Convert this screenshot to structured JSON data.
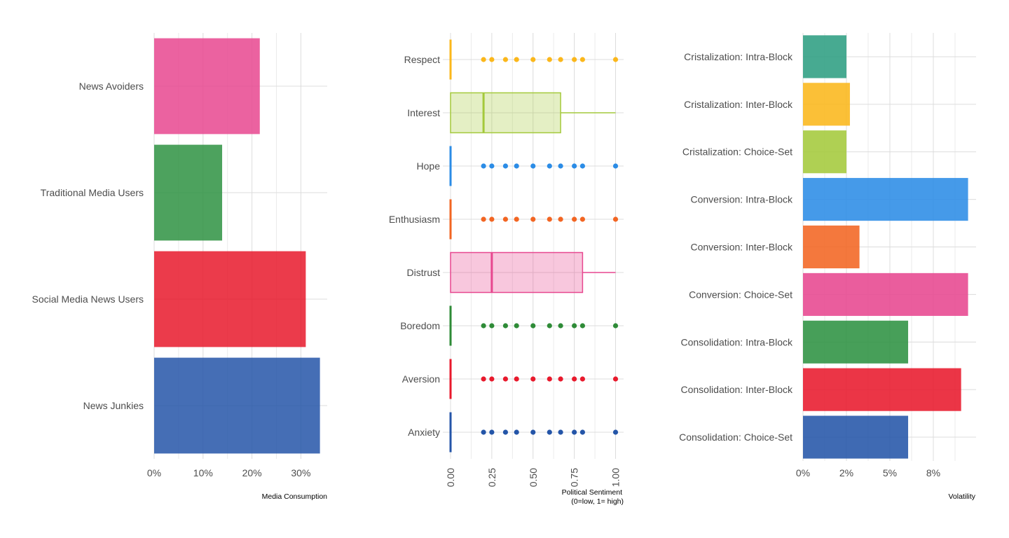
{
  "chart_data": [
    {
      "type": "bar",
      "orientation": "horizontal",
      "categories": [
        "News Avoiders",
        "Traditional Media Users",
        "Social Media News Users",
        "News Junkies"
      ],
      "values": [
        0.216,
        0.139,
        0.31,
        0.339
      ],
      "colors": [
        "#e7478f",
        "#2e9242",
        "#e8192c",
        "#2455a8"
      ],
      "xlabel": "Media Consumption",
      "xticks": [
        "0%",
        "10%",
        "20%",
        "30%"
      ],
      "xlim": [
        0,
        0.35
      ],
      "grid": true
    },
    {
      "type": "box",
      "orientation": "horizontal",
      "xlabel": "Political Sentiment\n(0=low, 1= high)",
      "xlabel_lines": [
        "Political Sentiment",
        "(0=low, 1= high)"
      ],
      "xticks": [
        "0.00",
        "0.25",
        "0.50",
        "0.75",
        "1.00"
      ],
      "xlim": [
        0,
        1
      ],
      "grid": true,
      "series": [
        {
          "name": "Respect",
          "color": "#fbb71b",
          "q1": 0,
          "median": 0,
          "q3": 0,
          "whisker_high": 0,
          "outliers": [
            0.2,
            0.25,
            0.333,
            0.4,
            0.5,
            0.6,
            0.667,
            0.75,
            0.8,
            1.0
          ]
        },
        {
          "name": "Interest",
          "color": "#a4c93b",
          "q1": 0,
          "median": 0.2,
          "q3": 0.667,
          "whisker_high": 1.0,
          "outliers": []
        },
        {
          "name": "Hope",
          "color": "#2b8ce6",
          "q1": 0,
          "median": 0,
          "q3": 0,
          "whisker_high": 0,
          "outliers": [
            0.2,
            0.25,
            0.333,
            0.4,
            0.5,
            0.6,
            0.667,
            0.75,
            0.8,
            1.0
          ]
        },
        {
          "name": "Enthusiasm",
          "color": "#f26522",
          "q1": 0,
          "median": 0,
          "q3": 0,
          "whisker_high": 0,
          "outliers": [
            0.2,
            0.25,
            0.333,
            0.4,
            0.5,
            0.6,
            0.667,
            0.75,
            0.8,
            1.0
          ]
        },
        {
          "name": "Distrust",
          "color": "#e7478f",
          "q1": 0,
          "median": 0.25,
          "q3": 0.8,
          "whisker_high": 1.0,
          "outliers": []
        },
        {
          "name": "Boredom",
          "color": "#2e8b37",
          "q1": 0,
          "median": 0,
          "q3": 0,
          "whisker_high": 0,
          "outliers": [
            0.2,
            0.25,
            0.333,
            0.4,
            0.5,
            0.6,
            0.667,
            0.75,
            0.8,
            1.0
          ]
        },
        {
          "name": "Aversion",
          "color": "#e8192c",
          "q1": 0,
          "median": 0,
          "q3": 0,
          "whisker_high": 0,
          "outliers": [
            0.2,
            0.25,
            0.333,
            0.4,
            0.5,
            0.6,
            0.667,
            0.75,
            0.8,
            1.0
          ]
        },
        {
          "name": "Anxiety",
          "color": "#2455a8",
          "q1": 0,
          "median": 0,
          "q3": 0,
          "whisker_high": 0,
          "outliers": [
            0.2,
            0.25,
            0.333,
            0.4,
            0.5,
            0.6,
            0.667,
            0.75,
            0.8,
            1.0
          ]
        }
      ]
    },
    {
      "type": "bar",
      "orientation": "horizontal",
      "categories": [
        "Cristalization: Intra-Block",
        "Cristalization: Inter-Block",
        "Cristalization: Choice-Set",
        "Conversion: Intra-Block",
        "Conversion: Inter-Block",
        "Conversion: Choice-Set",
        "Consolidation: Intra-Block",
        "Consolidation: Inter-Block",
        "Consolidation: Choice-Set"
      ],
      "values": [
        0.025,
        0.027,
        0.025,
        0.095,
        0.0325,
        0.095,
        0.0605,
        0.091,
        0.0605
      ],
      "colors": [
        "#2e9e82",
        "#fbb71b",
        "#a4c93b",
        "#2b8ce6",
        "#f26522",
        "#e7478f",
        "#2e9242",
        "#e8192c",
        "#2455a8"
      ],
      "xlabel": "Volatility",
      "xticks": [
        "0%",
        "2%",
        "5%",
        "8%"
      ],
      "xlim": [
        0,
        0.1
      ],
      "grid": true
    }
  ]
}
